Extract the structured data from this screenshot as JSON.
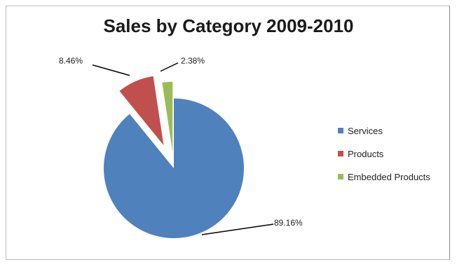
{
  "chart_data": {
    "type": "pie",
    "title": "Sales by Category 2009-2010",
    "categories": [
      "Services",
      "Products",
      "Embedded Products"
    ],
    "values": [
      89.16,
      8.46,
      2.38
    ],
    "data_labels": [
      "89.16%",
      "8.46%",
      "2.38%"
    ],
    "colors": [
      "#4F81BD",
      "#C0504D",
      "#9BBB59"
    ],
    "legend_placement": "right",
    "exploded": true
  }
}
